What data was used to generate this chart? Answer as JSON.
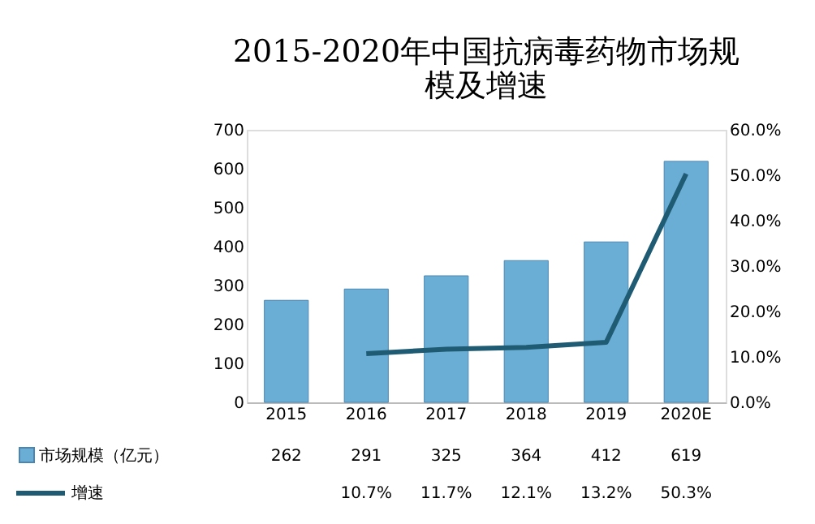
{
  "chart_data": {
    "type": "bar",
    "title": "2015-2020年中国抗病毒药物市场规模及增速",
    "categories": [
      "2015",
      "2016",
      "2017",
      "2018",
      "2019",
      "2020E"
    ],
    "series": [
      {
        "name": "市场规模（亿元）",
        "color": "#6aaed6",
        "values": [
          262,
          291,
          325,
          364,
          412,
          619
        ],
        "value_labels": [
          "262",
          "291",
          "325",
          "364",
          "412",
          "619"
        ]
      },
      {
        "name": "增速",
        "type": "line",
        "axis": "y2",
        "color": "#1f5c73",
        "values": [
          null,
          10.7,
          11.7,
          12.1,
          13.2,
          50.3
        ],
        "value_labels": [
          null,
          "10.7%",
          "11.7%",
          "12.1%",
          "13.2%",
          "50.3%"
        ]
      }
    ],
    "ylim": [
      0,
      700
    ],
    "yticks": [
      0,
      100,
      200,
      300,
      400,
      500,
      600,
      700
    ],
    "y2lim": [
      0,
      60
    ],
    "y2ticks": [
      {
        "value": 0,
        "label": "0.0%"
      },
      {
        "value": 10,
        "label": "10.0%"
      },
      {
        "value": 20,
        "label": "20.0%"
      },
      {
        "value": 30,
        "label": "30.0%"
      },
      {
        "value": 40,
        "label": "40.0%"
      },
      {
        "value": 50,
        "label": "50.0%"
      },
      {
        "value": 60,
        "label": "60.0%"
      }
    ],
    "grid": false,
    "legend": "bottom",
    "marker": "none",
    "line_style": "solid"
  }
}
